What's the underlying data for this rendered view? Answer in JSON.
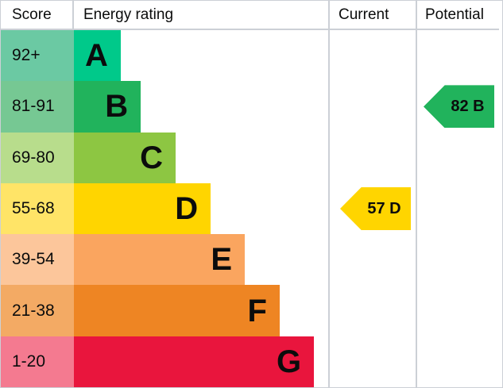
{
  "header": {
    "score": "Score",
    "energy_rating": "Energy rating",
    "current": "Current",
    "potential": "Potential"
  },
  "rows": [
    {
      "score": "92+",
      "letter": "A",
      "bar_color": "#00c98a",
      "score_bg": "#6bc9a3",
      "width_pct": 18.4
    },
    {
      "score": "81-91",
      "letter": "B",
      "bar_color": "#21b35c",
      "score_bg": "#76c893",
      "width_pct": 26.3
    },
    {
      "score": "69-80",
      "letter": "C",
      "bar_color": "#8dc642",
      "score_bg": "#b8dd8c",
      "width_pct": 40.0
    },
    {
      "score": "55-68",
      "letter": "D",
      "bar_color": "#ffd500",
      "score_bg": "#ffe467",
      "width_pct": 53.8
    },
    {
      "score": "39-54",
      "letter": "E",
      "bar_color": "#faa55f",
      "score_bg": "#fcc69b",
      "width_pct": 67.2
    },
    {
      "score": "21-38",
      "letter": "F",
      "bar_color": "#ee8523",
      "score_bg": "#f3aa64",
      "width_pct": 80.9
    },
    {
      "score": "1-20",
      "letter": "G",
      "bar_color": "#e9153d",
      "score_bg": "#f47a90",
      "width_pct": 94.4
    }
  ],
  "current": {
    "label": "57 D",
    "value": 57,
    "band": "D",
    "row_index": 3,
    "color": "#ffd500"
  },
  "potential": {
    "label": "82 B",
    "value": 82,
    "band": "B",
    "row_index": 1,
    "color": "#21b35c"
  },
  "chart_data": {
    "type": "bar",
    "title": "Energy rating",
    "categories": [
      "A",
      "B",
      "C",
      "D",
      "E",
      "F",
      "G"
    ],
    "score_ranges": [
      "92+",
      "81-91",
      "69-80",
      "55-68",
      "39-54",
      "21-38",
      "1-20"
    ],
    "bar_widths_pct": [
      18.4,
      26.3,
      40.0,
      53.8,
      67.2,
      80.9,
      94.4
    ],
    "bar_colors": [
      "#00c98a",
      "#21b35c",
      "#8dc642",
      "#ffd500",
      "#faa55f",
      "#ee8523",
      "#e9153d"
    ],
    "score_cell_colors": [
      "#6bc9a3",
      "#76c893",
      "#b8dd8c",
      "#ffe467",
      "#fcc69b",
      "#f3aa64",
      "#f47a90"
    ],
    "current": {
      "score": 57,
      "band": "D"
    },
    "potential": {
      "score": 82,
      "band": "B"
    },
    "column_headers": [
      "Score",
      "Energy rating",
      "Current",
      "Potential"
    ],
    "legend_position": "none",
    "grid": false
  }
}
